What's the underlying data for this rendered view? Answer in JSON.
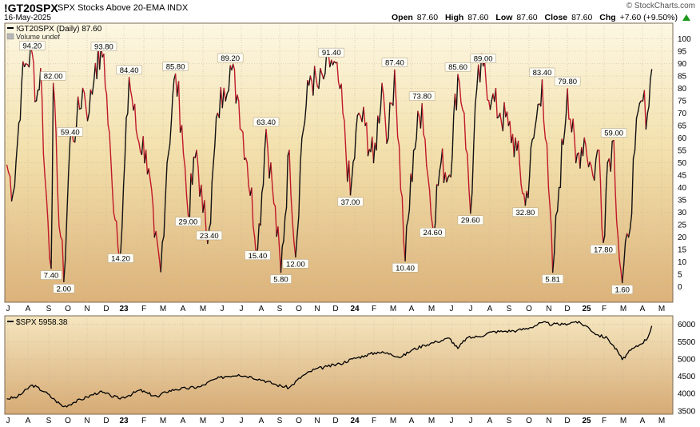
{
  "header": {
    "symbol": "!GT20SPX",
    "description": "SPX Stocks Above 20-EMA  INDX",
    "date": "16-May-2025",
    "brand": "© StockCharts.com",
    "open_label": "Open",
    "open": "87.60",
    "high_label": "High",
    "high": "87.60",
    "low_label": "Low",
    "low": "87.60",
    "close_label": "Close",
    "close": "87.60",
    "chg_label": "Chg",
    "chg": "+7.60 (+9.50%)"
  },
  "colors": {
    "up": "#111111",
    "down": "#c0182a",
    "panel_top": "#fbf4dc",
    "panel_bottom": "#d8b07a",
    "grid": "#c8b89a",
    "spx_line": "#000000"
  },
  "chart_data": [
    {
      "type": "line",
      "title": "!GT20SPX (Daily) 87.60",
      "legend_sub": "Volume undef",
      "ylim": [
        -5,
        105
      ],
      "yticks": [
        0,
        5,
        10,
        15,
        20,
        25,
        30,
        35,
        40,
        45,
        50,
        55,
        60,
        65,
        70,
        75,
        80,
        85,
        90,
        95,
        100
      ],
      "x_labels": [
        "J",
        "A",
        "S",
        "O",
        "N",
        "D",
        "23",
        "F",
        "M",
        "A",
        "M",
        "J",
        "J",
        "A",
        "S",
        "O",
        "N",
        "D",
        "24",
        "F",
        "M",
        "A",
        "M",
        "J",
        "J",
        "A",
        "S",
        "O",
        "N",
        "D",
        "25",
        "F",
        "M",
        "A",
        "M"
      ],
      "bold_labels": [
        "23",
        "24",
        "25"
      ],
      "annotations": [
        {
          "x": 1.2,
          "y": 94.2,
          "label": "94.20"
        },
        {
          "x": 2.1,
          "y": 7.4,
          "label": "7.40"
        },
        {
          "x": 2.2,
          "y": 82.0,
          "label": "82.00"
        },
        {
          "x": 2.7,
          "y": 2.0,
          "label": "2.00"
        },
        {
          "x": 3.0,
          "y": 59.4,
          "label": "59.40"
        },
        {
          "x": 4.6,
          "y": 93.8,
          "label": "93.80"
        },
        {
          "x": 5.4,
          "y": 14.2,
          "label": "14.20"
        },
        {
          "x": 5.8,
          "y": 84.4,
          "label": "84.40"
        },
        {
          "x": 8.0,
          "y": 85.8,
          "label": "85.80"
        },
        {
          "x": 8.6,
          "y": 29.0,
          "label": "29.00"
        },
        {
          "x": 9.6,
          "y": 23.4,
          "label": "23.40"
        },
        {
          "x": 10.6,
          "y": 89.2,
          "label": "89.20"
        },
        {
          "x": 11.9,
          "y": 15.4,
          "label": "15.40"
        },
        {
          "x": 12.3,
          "y": 63.4,
          "label": "63.40"
        },
        {
          "x": 13.0,
          "y": 5.8,
          "label": "5.80"
        },
        {
          "x": 13.7,
          "y": 12.0,
          "label": "12.00"
        },
        {
          "x": 15.4,
          "y": 91.4,
          "label": "91.40"
        },
        {
          "x": 16.3,
          "y": 37.0,
          "label": "37.00"
        },
        {
          "x": 18.4,
          "y": 87.4,
          "label": "87.40"
        },
        {
          "x": 18.9,
          "y": 10.4,
          "label": "10.40"
        },
        {
          "x": 19.7,
          "y": 73.8,
          "label": "73.80"
        },
        {
          "x": 20.2,
          "y": 24.6,
          "label": "24.60"
        },
        {
          "x": 21.4,
          "y": 85.6,
          "label": "85.60"
        },
        {
          "x": 22.0,
          "y": 29.6,
          "label": "29.60"
        },
        {
          "x": 22.6,
          "y": 89.0,
          "label": "89.00"
        },
        {
          "x": 24.6,
          "y": 32.8,
          "label": "32.80"
        },
        {
          "x": 25.4,
          "y": 83.4,
          "label": "83.40"
        },
        {
          "x": 25.9,
          "y": 5.81,
          "label": "5.81"
        },
        {
          "x": 26.6,
          "y": 79.8,
          "label": "79.80"
        },
        {
          "x": 28.3,
          "y": 17.8,
          "label": "17.80"
        },
        {
          "x": 28.8,
          "y": 59.0,
          "label": "59.00"
        },
        {
          "x": 29.2,
          "y": 1.6,
          "label": "1.60"
        }
      ],
      "keypoints": [
        [
          0,
          49
        ],
        [
          0.3,
          38
        ],
        [
          0.5,
          58
        ],
        [
          0.7,
          82
        ],
        [
          0.9,
          90
        ],
        [
          1.2,
          94.2
        ],
        [
          1.4,
          75
        ],
        [
          1.6,
          88
        ],
        [
          1.8,
          45
        ],
        [
          2.1,
          7.4
        ],
        [
          2.2,
          82
        ],
        [
          2.4,
          40
        ],
        [
          2.7,
          2.0
        ],
        [
          3.0,
          59.4
        ],
        [
          3.3,
          65
        ],
        [
          3.6,
          80
        ],
        [
          3.9,
          70
        ],
        [
          4.2,
          90
        ],
        [
          4.6,
          93.8
        ],
        [
          5.0,
          40
        ],
        [
          5.4,
          14.2
        ],
        [
          5.8,
          84.4
        ],
        [
          6.2,
          60
        ],
        [
          6.6,
          55
        ],
        [
          7.0,
          20
        ],
        [
          7.3,
          6
        ],
        [
          7.6,
          50
        ],
        [
          8.0,
          85.8
        ],
        [
          8.3,
          65
        ],
        [
          8.6,
          29
        ],
        [
          9.0,
          55
        ],
        [
          9.3,
          30
        ],
        [
          9.6,
          23.4
        ],
        [
          10.0,
          70
        ],
        [
          10.3,
          80
        ],
        [
          10.6,
          89.2
        ],
        [
          11.0,
          75
        ],
        [
          11.4,
          50
        ],
        [
          11.9,
          15.4
        ],
        [
          12.3,
          63.4
        ],
        [
          12.6,
          40
        ],
        [
          13.0,
          5.8
        ],
        [
          13.4,
          55
        ],
        [
          13.7,
          12.0
        ],
        [
          14.0,
          60
        ],
        [
          14.4,
          85
        ],
        [
          14.8,
          80
        ],
        [
          15.1,
          86
        ],
        [
          15.4,
          91.4
        ],
        [
          15.8,
          80
        ],
        [
          16.3,
          37
        ],
        [
          16.7,
          70
        ],
        [
          17.0,
          65
        ],
        [
          17.4,
          50
        ],
        [
          17.8,
          82
        ],
        [
          18.1,
          60
        ],
        [
          18.4,
          87.4
        ],
        [
          18.9,
          10.4
        ],
        [
          19.3,
          55
        ],
        [
          19.7,
          73.8
        ],
        [
          20.2,
          24.6
        ],
        [
          20.6,
          50
        ],
        [
          21.0,
          45
        ],
        [
          21.4,
          85.6
        ],
        [
          21.7,
          70
        ],
        [
          22.0,
          29.6
        ],
        [
          22.3,
          80
        ],
        [
          22.6,
          89
        ],
        [
          23.0,
          75
        ],
        [
          23.4,
          70
        ],
        [
          23.8,
          65
        ],
        [
          24.2,
          55
        ],
        [
          24.6,
          32.8
        ],
        [
          25.0,
          60
        ],
        [
          25.4,
          83.4
        ],
        [
          25.7,
          40
        ],
        [
          25.9,
          5.81
        ],
        [
          26.2,
          40
        ],
        [
          26.6,
          79.8
        ],
        [
          27.0,
          50
        ],
        [
          27.4,
          60
        ],
        [
          27.8,
          45
        ],
        [
          28.1,
          55
        ],
        [
          28.3,
          17.8
        ],
        [
          28.5,
          50
        ],
        [
          28.8,
          59
        ],
        [
          29.0,
          20
        ],
        [
          29.2,
          1.6
        ],
        [
          29.5,
          20
        ],
        [
          29.8,
          55
        ],
        [
          30.1,
          75
        ],
        [
          30.4,
          70
        ],
        [
          30.6,
          87.6
        ]
      ]
    },
    {
      "type": "line",
      "title": "$SPX 5958.38",
      "ylim": [
        3450,
        6200
      ],
      "yticks": [
        3500,
        4000,
        4500,
        5000,
        5500,
        6000
      ],
      "x_labels": [
        "J",
        "A",
        "S",
        "O",
        "N",
        "D",
        "23",
        "F",
        "M",
        "A",
        "M",
        "J",
        "J",
        "A",
        "S",
        "O",
        "N",
        "D",
        "24",
        "F",
        "M",
        "A",
        "M",
        "J",
        "J",
        "A",
        "S",
        "O",
        "N",
        "D",
        "25",
        "F",
        "M",
        "A",
        "M"
      ],
      "keypoints": [
        [
          0,
          3850
        ],
        [
          0.5,
          3900
        ],
        [
          1.2,
          4250
        ],
        [
          1.8,
          4050
        ],
        [
          2.3,
          3800
        ],
        [
          2.7,
          3620
        ],
        [
          3.2,
          3750
        ],
        [
          3.8,
          3900
        ],
        [
          4.4,
          4050
        ],
        [
          4.9,
          3950
        ],
        [
          5.3,
          3860
        ],
        [
          5.8,
          3950
        ],
        [
          6.3,
          4100
        ],
        [
          6.7,
          4000
        ],
        [
          7.2,
          3900
        ],
        [
          7.5,
          4050
        ],
        [
          8.0,
          4120
        ],
        [
          8.5,
          4150
        ],
        [
          9.2,
          4200
        ],
        [
          9.8,
          4400
        ],
        [
          10.4,
          4500
        ],
        [
          11.0,
          4550
        ],
        [
          11.6,
          4480
        ],
        [
          12.2,
          4380
        ],
        [
          12.8,
          4250
        ],
        [
          13.4,
          4170
        ],
        [
          14.0,
          4500
        ],
        [
          14.6,
          4700
        ],
        [
          15.2,
          4780
        ],
        [
          15.8,
          4860
        ],
        [
          16.4,
          5000
        ],
        [
          17.0,
          5100
        ],
        [
          17.6,
          5200
        ],
        [
          18.2,
          5150
        ],
        [
          18.7,
          5050
        ],
        [
          19.2,
          5250
        ],
        [
          19.8,
          5400
        ],
        [
          20.4,
          5500
        ],
        [
          21.0,
          5600
        ],
        [
          21.4,
          5300
        ],
        [
          21.8,
          5600
        ],
        [
          22.4,
          5650
        ],
        [
          23.0,
          5780
        ],
        [
          23.6,
          5800
        ],
        [
          24.2,
          5820
        ],
        [
          24.8,
          5900
        ],
        [
          25.4,
          6050
        ],
        [
          25.9,
          6000
        ],
        [
          26.4,
          6000
        ],
        [
          27.0,
          6080
        ],
        [
          27.5,
          5950
        ],
        [
          28.0,
          5700
        ],
        [
          28.5,
          5600
        ],
        [
          29.0,
          5200
        ],
        [
          29.2,
          4980
        ],
        [
          29.6,
          5250
        ],
        [
          30.0,
          5400
        ],
        [
          30.4,
          5600
        ],
        [
          30.6,
          5958
        ]
      ]
    }
  ]
}
